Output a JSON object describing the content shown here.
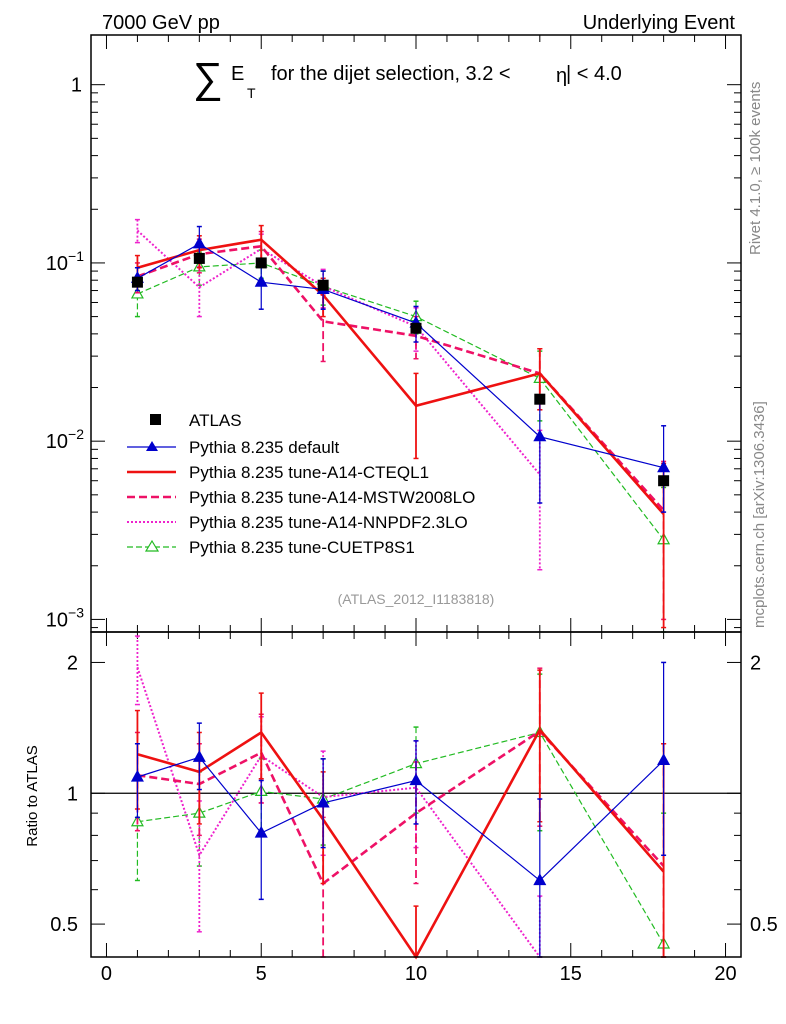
{
  "header": {
    "energy_label": "7000 GeV pp",
    "process_label": "Underlying Event"
  },
  "title": {
    "sum_symbol": "∑",
    "e_letter": "E",
    "t_subscript": "T",
    "selection_text": "for the dijet selection, 3.2 <",
    "eta_text": "η",
    "bracket_text": "| < 4.0"
  },
  "side_labels": {
    "rivet": "Rivet 4.1.0, ≥ 100k events",
    "mcplots": "mcplots.cern.ch [arXiv:1306.3436]"
  },
  "analysis_id": "(ATLAS_2012_I1183818)",
  "ratio_ylabel": "Ratio to ATLAS",
  "colors": {
    "data": "#000000",
    "default": "#0000cc",
    "cteql1": "#ee1111",
    "mstw": "#ee1166",
    "nnpdf": "#ee22cc",
    "cuetp8s1": "#22bb22",
    "analysis_id": "#999999",
    "side": "#888888"
  },
  "chart_data": {
    "type": "line",
    "x_axis": {
      "range": [
        -0.5,
        20.5
      ],
      "ticks": [
        0,
        5,
        10,
        15,
        20
      ],
      "tick_labels": [
        "0",
        "5",
        "10",
        "15",
        "20"
      ]
    },
    "main_panel": {
      "yscale": "log",
      "ylim": [
        0.00085,
        1.9
      ],
      "tick_values": [
        0.001,
        0.01,
        0.1,
        1
      ],
      "tick_labels": [
        {
          "base": "10",
          "exp": "−3"
        },
        {
          "base": "10",
          "exp": "−2"
        },
        {
          "base": "10",
          "exp": "−1"
        },
        {
          "base": "1",
          "exp": ""
        }
      ]
    },
    "ratio_panel": {
      "yscale": "log",
      "ylim": [
        0.42,
        2.35
      ],
      "tick_values": [
        0.5,
        1,
        2
      ],
      "tick_labels": [
        "0.5",
        "1",
        "2"
      ],
      "reference_line": 1
    },
    "x": [
      1,
      3,
      5,
      7,
      10,
      14,
      18
    ],
    "series": [
      {
        "key": "atlas",
        "name": "ATLAS",
        "style": "data",
        "values": [
          0.078,
          0.106,
          0.1,
          0.075,
          0.043,
          0.0172,
          0.006
        ],
        "ratio": [
          1,
          1,
          1,
          1,
          1,
          1,
          1
        ]
      },
      {
        "key": "default",
        "name": "Pythia 8.235 default",
        "style": "solid-thin",
        "marker": "triangle-filled",
        "values": [
          0.082,
          0.128,
          0.078,
          0.071,
          0.046,
          0.0106,
          0.0071
        ],
        "err_lo": [
          0.07,
          0.1,
          0.055,
          0.055,
          0.036,
          0.0045,
          0.004
        ],
        "err_hi": [
          0.094,
          0.16,
          0.098,
          0.09,
          0.057,
          0.0165,
          0.0122
        ],
        "ratio": [
          1.09,
          1.21,
          0.81,
          0.95,
          1.07,
          0.63,
          1.19
        ],
        "ratio_lo": [
          0.88,
          1.02,
          0.57,
          0.75,
          0.85,
          0.33,
          0.72
        ],
        "ratio_hi": [
          1.3,
          1.45,
          1.07,
          1.2,
          1.32,
          0.97,
          2.0
        ]
      },
      {
        "key": "cteql1",
        "name": "Pythia 8.235 tune-A14-CTEQL1",
        "style": "solid-thick",
        "marker": "none",
        "values": [
          0.094,
          0.118,
          0.135,
          0.066,
          0.0158,
          0.024,
          0.0039
        ],
        "err_lo": [
          0.078,
          0.094,
          0.105,
          0.05,
          0.008,
          0.015,
          0.0009
        ],
        "err_hi": [
          0.11,
          0.142,
          0.162,
          0.082,
          0.024,
          0.033,
          0.0075
        ],
        "ratio": [
          1.23,
          1.12,
          1.38,
          0.87,
          0.37,
          1.4,
          0.66
        ],
        "ratio_lo": [
          0.92,
          0.85,
          1.08,
          0.62,
          0.2,
          0.86,
          0.15
        ],
        "ratio_hi": [
          1.55,
          1.38,
          1.7,
          1.12,
          0.55,
          1.92,
          1.3
        ]
      },
      {
        "key": "mstw",
        "name": "Pythia 8.235 tune-A14-MSTW2008LO",
        "style": "dashed-thick",
        "marker": "none",
        "values": [
          0.084,
          0.112,
          0.124,
          0.047,
          0.039,
          0.024,
          0.0041
        ],
        "err_lo": [
          0.068,
          0.088,
          0.098,
          0.028,
          0.029,
          0.015,
          0.001
        ],
        "err_hi": [
          0.1,
          0.136,
          0.15,
          0.066,
          0.05,
          0.033,
          0.0077
        ],
        "ratio": [
          1.1,
          1.05,
          1.24,
          0.62,
          0.9,
          1.39,
          0.68
        ],
        "ratio_lo": [
          0.82,
          0.8,
          0.95,
          0.35,
          0.62,
          0.84,
          0.15
        ],
        "ratio_hi": [
          1.38,
          1.3,
          1.52,
          0.88,
          1.18,
          1.94,
          1.3
        ]
      },
      {
        "key": "nnpdf",
        "name": "Pythia 8.235 tune-A14-NNPDF2.3LO",
        "style": "dotted",
        "marker": "none",
        "values": [
          0.152,
          0.073,
          0.12,
          0.074,
          0.044,
          0.0065,
          null
        ],
        "err_lo": [
          0.13,
          0.05,
          0.096,
          0.056,
          0.032,
          0.0019,
          null
        ],
        "err_hi": [
          0.175,
          0.095,
          0.145,
          0.092,
          0.056,
          0.0115,
          null
        ],
        "ratio": [
          1.95,
          0.72,
          1.22,
          0.98,
          1.03,
          0.34,
          null
        ],
        "ratio_lo": [
          1.6,
          0.48,
          0.95,
          0.72,
          0.75,
          0.12,
          null
        ],
        "ratio_hi": [
          2.3,
          0.96,
          1.5,
          1.25,
          1.32,
          0.58,
          null
        ]
      },
      {
        "key": "cuetp8s1",
        "name": "Pythia 8.235 tune-CUETP8S1",
        "style": "dashed-thin",
        "marker": "triangle-open",
        "values": [
          0.067,
          0.095,
          0.1,
          0.074,
          0.05,
          0.0225,
          0.0028
        ],
        "err_lo": [
          0.05,
          0.075,
          0.082,
          0.058,
          0.04,
          0.013,
          0.0005
        ],
        "err_hi": [
          0.084,
          0.115,
          0.118,
          0.09,
          0.061,
          0.032,
          0.0055
        ],
        "ratio": [
          0.86,
          0.9,
          1.01,
          0.97,
          1.17,
          1.38,
          0.45
        ],
        "ratio_lo": [
          0.63,
          0.68,
          0.8,
          0.76,
          0.9,
          0.82,
          0.09
        ],
        "ratio_hi": [
          1.08,
          1.12,
          1.2,
          1.2,
          1.42,
          1.88,
          0.9
        ]
      }
    ]
  }
}
